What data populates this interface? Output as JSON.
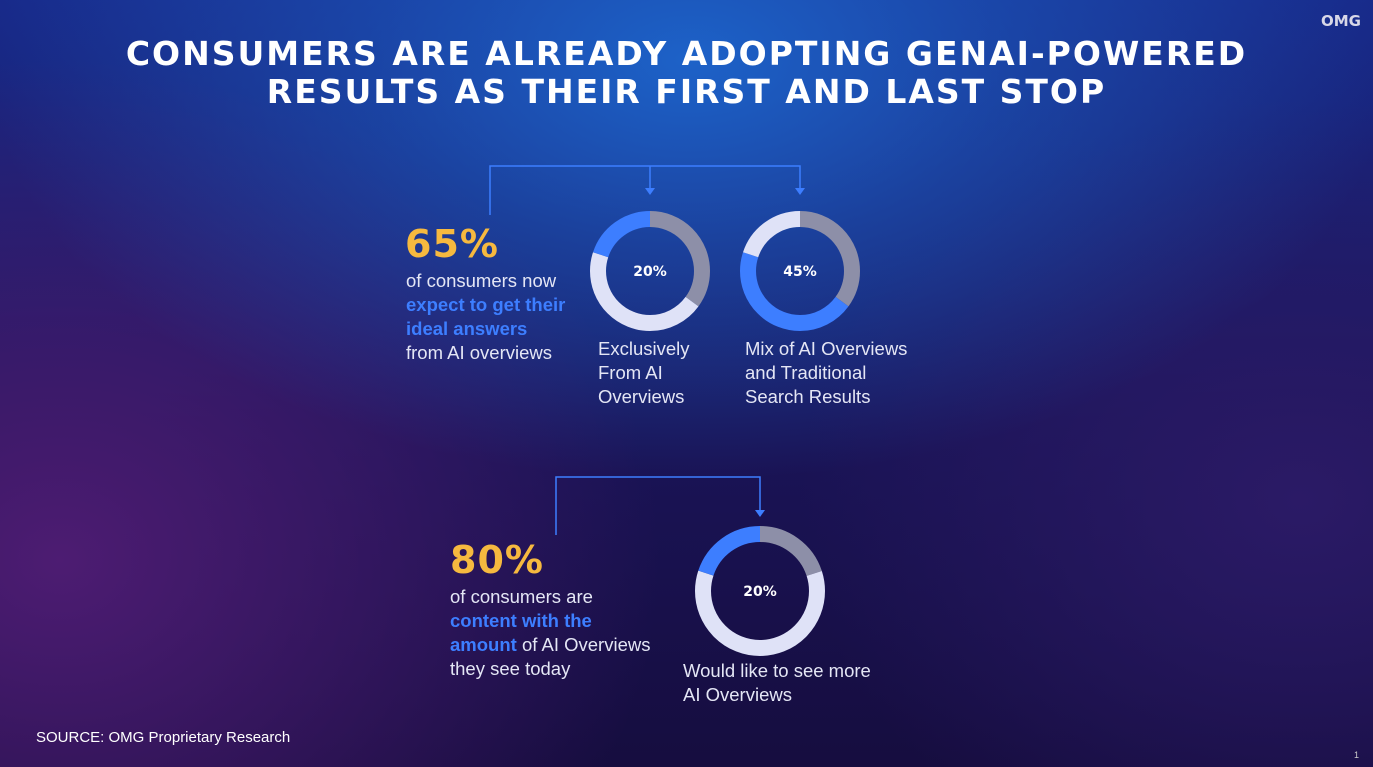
{
  "header": {
    "title_lines": [
      "CONSUMERS ARE ALREADY ADOPTING GENAI-POWERED",
      "RESULTS AS THEIR FIRST AND LAST STOP"
    ],
    "logo": "OMG"
  },
  "groups": [
    {
      "stat": "65%",
      "lines": [
        [
          {
            "text": "of consumers now",
            "highlight": false
          }
        ],
        [
          {
            "text": "expect to get their",
            "highlight": true
          }
        ],
        [
          {
            "text": "ideal answers",
            "highlight": true
          }
        ],
        [
          {
            "text": "from AI overviews",
            "highlight": false
          }
        ]
      ],
      "donuts": [
        {
          "label": "20%",
          "caption": [
            "Exclusively",
            "From AI",
            "Overviews"
          ],
          "segments": [
            {
              "value": 35,
              "color": "#8d8fa8"
            },
            {
              "value": 45,
              "color": "#dfe2f7"
            },
            {
              "value": 20,
              "color": "#3d7eff"
            }
          ]
        },
        {
          "label": "45%",
          "caption": [
            "Mix of AI Overviews",
            "and Traditional",
            "Search Results"
          ],
          "segments": [
            {
              "value": 35,
              "color": "#8d8fa8"
            },
            {
              "value": 45,
              "color": "#3d7eff"
            },
            {
              "value": 20,
              "color": "#dfe2f7"
            }
          ]
        }
      ]
    },
    {
      "stat": "80%",
      "lines": [
        [
          {
            "text": "of consumers are",
            "highlight": false
          }
        ],
        [
          {
            "text": "content with the",
            "highlight": true
          }
        ],
        [
          {
            "text": "amount",
            "highlight": true
          },
          {
            "text": " of AI Overviews",
            "highlight": false
          }
        ],
        [
          {
            "text": "they see today",
            "highlight": false
          }
        ]
      ],
      "donuts": [
        {
          "label": "20%",
          "caption": [
            "Would like to see more",
            "AI Overviews"
          ],
          "segments": [
            {
              "value": 20,
              "color": "#8d8fa8"
            },
            {
              "value": 60,
              "color": "#dfe2f7"
            },
            {
              "value": 20,
              "color": "#3d7eff"
            }
          ]
        }
      ]
    }
  ],
  "source": "SOURCE: OMG Proprietary Research",
  "page": "1"
}
